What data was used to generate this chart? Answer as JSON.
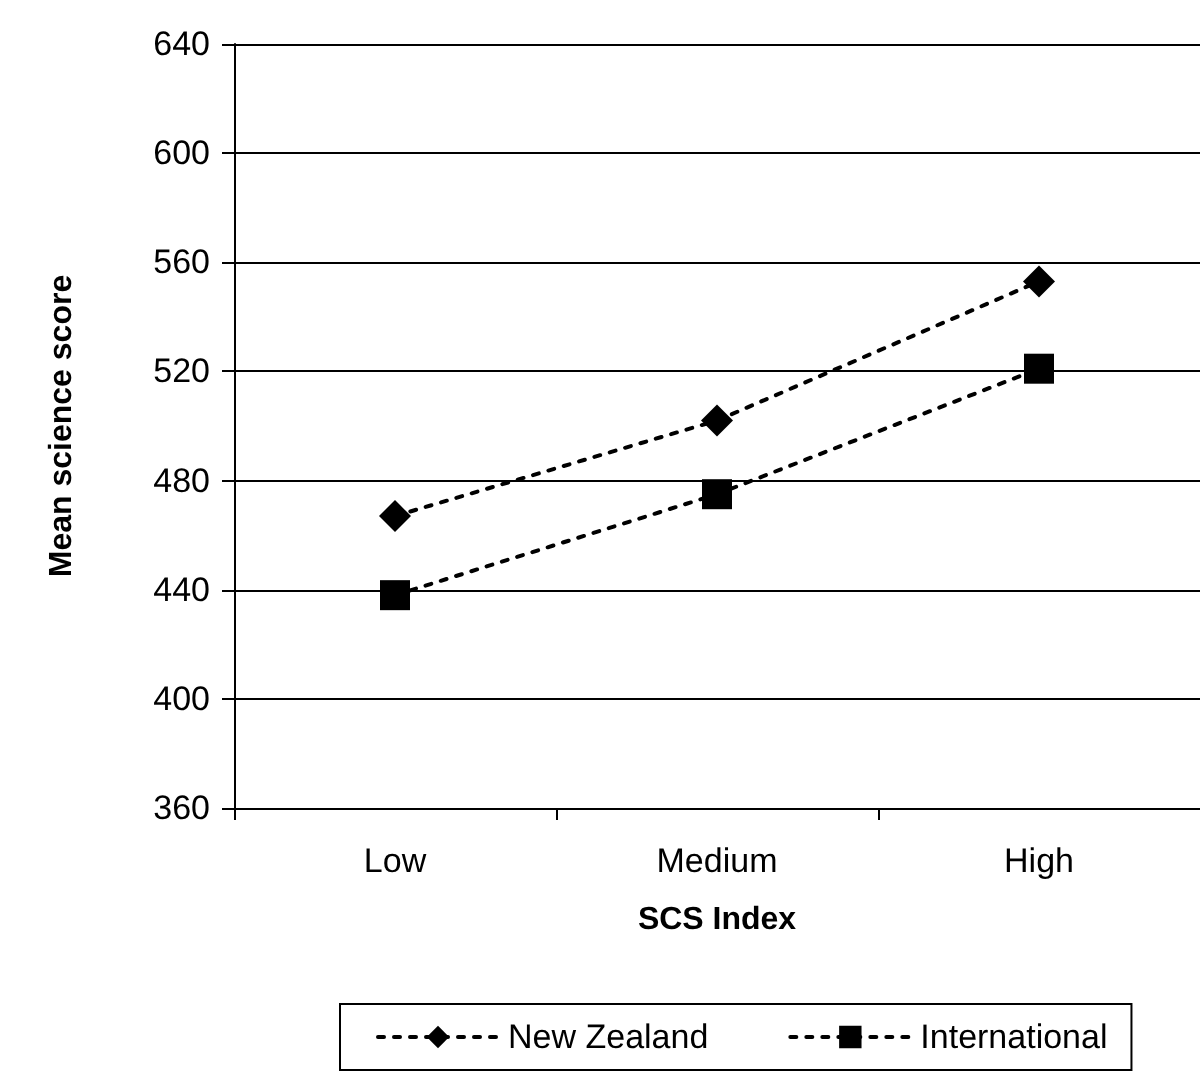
{
  "chart_data": {
    "type": "line",
    "xlabel": "SCS Index",
    "ylabel": "Mean science score",
    "categories": [
      "Low",
      "Medium",
      "High"
    ],
    "series": [
      {
        "name": "New Zealand",
        "color": "#000000",
        "values": [
          467,
          502,
          553
        ],
        "marker": "diamond"
      },
      {
        "name": "International",
        "color": "#000000",
        "values": [
          438,
          475,
          521
        ],
        "marker": "square"
      }
    ],
    "ylim": [
      360,
      640
    ],
    "yticks": [
      360,
      400,
      440,
      480,
      520,
      560,
      600,
      640
    ],
    "grid": "y",
    "legend": "bottom",
    "line_style": "dashed"
  }
}
